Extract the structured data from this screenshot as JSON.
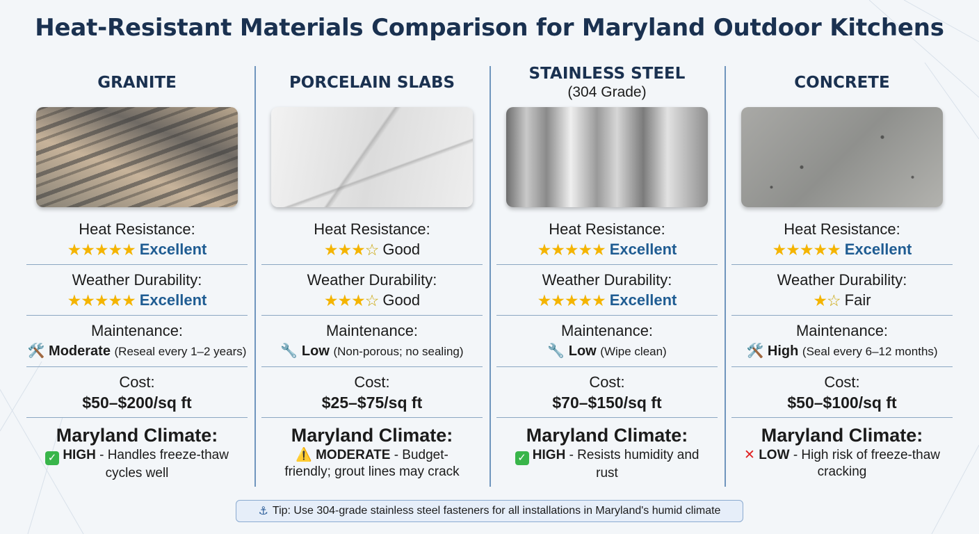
{
  "title": "Heat-Resistant Materials Comparison for Maryland Outdoor Kitchens",
  "labels": {
    "heat": "Heat Resistance:",
    "weather": "Weather Durability:",
    "maintenance": "Maintenance:",
    "cost": "Cost:",
    "climate": "Maryland Climate:"
  },
  "materials": [
    {
      "name": "GRANITE",
      "subtitle": "",
      "heat": {
        "stars": "★★★★★",
        "empty": "",
        "rating": "Excellent"
      },
      "weather": {
        "stars": "★★★★★",
        "empty": "",
        "rating": "Excellent"
      },
      "maintenance": {
        "icon": "🛠️",
        "level": "Moderate",
        "note": "(Reseal every 1–2 years)"
      },
      "cost": "$50–$200/sq ft",
      "climate": {
        "icon": "✓",
        "level": "HIGH",
        "text": "- Handles freeze-thaw cycles well"
      }
    },
    {
      "name": "PORCELAIN SLABS",
      "subtitle": "",
      "heat": {
        "stars": "★★★",
        "empty": "☆",
        "rating": "Good"
      },
      "weather": {
        "stars": "★★★",
        "empty": "☆",
        "rating": "Good"
      },
      "maintenance": {
        "icon": "🔧",
        "level": "Low",
        "note": "(Non-porous; no sealing)"
      },
      "cost": "$25–$75/sq ft",
      "climate": {
        "icon": "⚠️",
        "level": "MODERATE",
        "text": "- Budget-friendly; grout lines may crack"
      }
    },
    {
      "name": "STAINLESS STEEL",
      "subtitle": "(304 Grade)",
      "heat": {
        "stars": "★★★★★",
        "empty": "",
        "rating": "Excellent"
      },
      "weather": {
        "stars": "★★★★★",
        "empty": "",
        "rating": "Excellent"
      },
      "maintenance": {
        "icon": "🔧",
        "level": "Low",
        "note": "(Wipe clean)"
      },
      "cost": "$70–$150/sq ft",
      "climate": {
        "icon": "✓",
        "level": "HIGH",
        "text": "- Resists humidity and rust"
      }
    },
    {
      "name": "CONCRETE",
      "subtitle": "",
      "heat": {
        "stars": "★★★★★",
        "empty": "",
        "rating": "Excellent"
      },
      "weather": {
        "stars": "★",
        "empty": "☆",
        "rating": "Fair"
      },
      "maintenance": {
        "icon": "🛠️",
        "level": "High",
        "note": "(Seal every 6–12 months)"
      },
      "cost": "$50–$100/sq ft",
      "climate": {
        "icon": "✕",
        "level": "LOW",
        "text": "- High risk of freeze-thaw cracking"
      }
    }
  ],
  "tip": {
    "icon": "⚓",
    "text": "Tip: Use 304-grade stainless steel fasteners for all installations in Maryland's humid climate"
  },
  "colors": {
    "title": "#1a3150",
    "accent": "#1f5c92",
    "star": "#f4b400",
    "divider": "#6f95bd"
  }
}
